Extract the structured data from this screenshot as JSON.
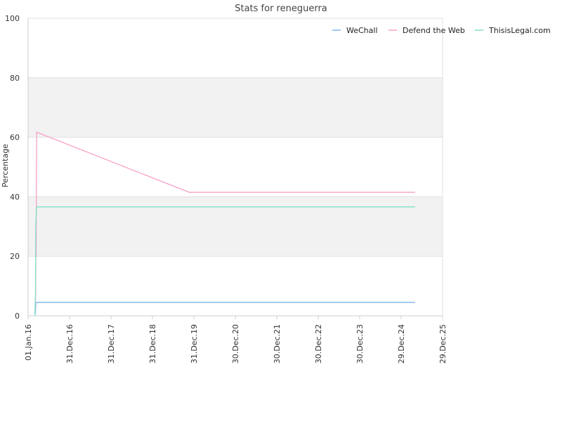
{
  "chart_data": {
    "type": "line",
    "title": "Stats for reneguerra",
    "ylabel": "Percentage",
    "xlabel": "",
    "ylim": [
      0,
      100
    ],
    "y_ticks": [
      0,
      20,
      40,
      60,
      80,
      100
    ],
    "x_tick_labels": [
      "01.Jan.16",
      "31.Dec.16",
      "31.Dec.17",
      "31.Dec.18",
      "31.Dec.19",
      "30.Dec.20",
      "30.Dec.21",
      "30.Dec.22",
      "30.Dec.23",
      "29.Dec.24",
      "29.Dec.25"
    ],
    "x_tick_dates": [
      "2016-01-01",
      "2016-12-31",
      "2017-12-31",
      "2018-12-31",
      "2019-12-31",
      "2020-12-30",
      "2021-12-30",
      "2022-12-30",
      "2023-12-30",
      "2024-12-29",
      "2025-12-29"
    ],
    "xlim": [
      "2016-01-01",
      "2025-12-29"
    ],
    "grid": true,
    "alternating_bands": true,
    "legend_position": "top-right",
    "series": [
      {
        "name": "WeChall",
        "color": "#7cb5ec",
        "points": [
          [
            "2016-03-01",
            0
          ],
          [
            "2016-03-05",
            1
          ],
          [
            "2016-03-10",
            4.5
          ],
          [
            "2025-05-01",
            4.5
          ]
        ]
      },
      {
        "name": "Defend the Web",
        "color": "#f7a1c8",
        "points": [
          [
            "2016-03-01",
            0
          ],
          [
            "2016-03-08",
            8
          ],
          [
            "2016-03-10",
            31
          ],
          [
            "2016-03-12",
            20
          ],
          [
            "2016-03-16",
            61.7
          ],
          [
            "2019-11-20",
            41.5
          ],
          [
            "2025-05-01",
            41.5
          ]
        ]
      },
      {
        "name": "ThisisLegal.com",
        "color": "#7fe0c6",
        "points": [
          [
            "2016-03-01",
            0
          ],
          [
            "2016-03-06",
            8
          ],
          [
            "2016-03-09",
            31
          ],
          [
            "2016-03-16",
            36.6
          ],
          [
            "2025-05-01",
            36.6
          ]
        ]
      }
    ]
  }
}
